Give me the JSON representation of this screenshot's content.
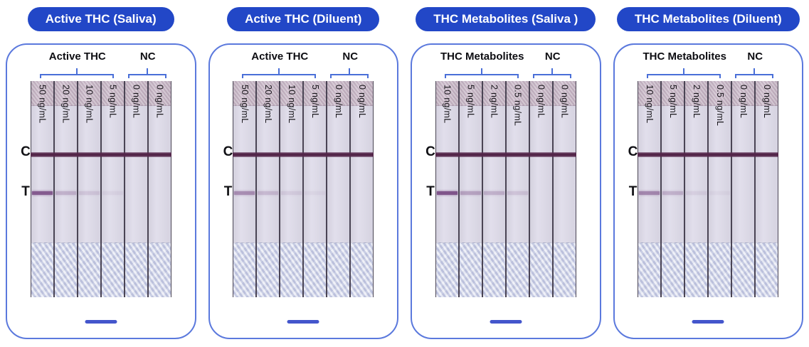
{
  "colors": {
    "badge_bg": "#2247c7",
    "badge_text": "#ffffff",
    "panel_border": "#5b79dd",
    "bracket": "#4a6fd8",
    "scale_bar": "#4456cc",
    "control_line": "#532549",
    "test_line": "#7b4e86",
    "separator": "#4a4454",
    "strip_bg": "#dfdcea",
    "band_bg": "#c9b9c8",
    "pad_bg": "#ccd1e6"
  },
  "row_labels": {
    "control": "C",
    "test": "T"
  },
  "panels": [
    {
      "badge": "Active THC (Saliva)",
      "group_label": "Active THC",
      "nc_label": "NC",
      "strips": [
        {
          "label": "50 ng/mL",
          "t_intensity": 0.9
        },
        {
          "label": "20 ng/mL",
          "t_intensity": 0.3
        },
        {
          "label": "10 ng/mL",
          "t_intensity": 0.16
        },
        {
          "label": "5 ng/mL",
          "t_intensity": 0.07
        },
        {
          "label": "0 ng/mL",
          "t_intensity": 0
        },
        {
          "label": "0 ng/mL",
          "t_intensity": 0
        }
      ]
    },
    {
      "badge": "Active THC (Diluent)",
      "group_label": "Active THC",
      "nc_label": "NC",
      "strips": [
        {
          "label": "50 ng/mL",
          "t_intensity": 0.55
        },
        {
          "label": "20 ng/mL",
          "t_intensity": 0.25
        },
        {
          "label": "10 ng/mL",
          "t_intensity": 0.12
        },
        {
          "label": "5 ng/mL",
          "t_intensity": 0.06
        },
        {
          "label": "0 ng/mL",
          "t_intensity": 0
        },
        {
          "label": "0 ng/mL",
          "t_intensity": 0
        }
      ]
    },
    {
      "badge": "THC Metabolites (Saliva )",
      "group_label": "THC Metabolites",
      "nc_label": "NC",
      "strips": [
        {
          "label": "10 ng/mL",
          "t_intensity": 0.95
        },
        {
          "label": "5 ng/mL",
          "t_intensity": 0.4
        },
        {
          "label": "2 ng/mL",
          "t_intensity": 0.3
        },
        {
          "label": "0.5 ng/mL",
          "t_intensity": 0.18
        },
        {
          "label": "0 ng/mL",
          "t_intensity": 0
        },
        {
          "label": "0 ng/mL",
          "t_intensity": 0
        }
      ]
    },
    {
      "badge": "THC Metabolites (Diluent)",
      "group_label": "THC Metabolites",
      "nc_label": "NC",
      "strips": [
        {
          "label": "10 ng/mL",
          "t_intensity": 0.6
        },
        {
          "label": "5 ng/mL",
          "t_intensity": 0.3
        },
        {
          "label": "2 ng/mL",
          "t_intensity": 0.1
        },
        {
          "label": "0.5 ng/mL",
          "t_intensity": 0.05
        },
        {
          "label": "0 ng/mL",
          "t_intensity": 0
        },
        {
          "label": "0 ng/mL",
          "t_intensity": 0
        }
      ]
    }
  ]
}
